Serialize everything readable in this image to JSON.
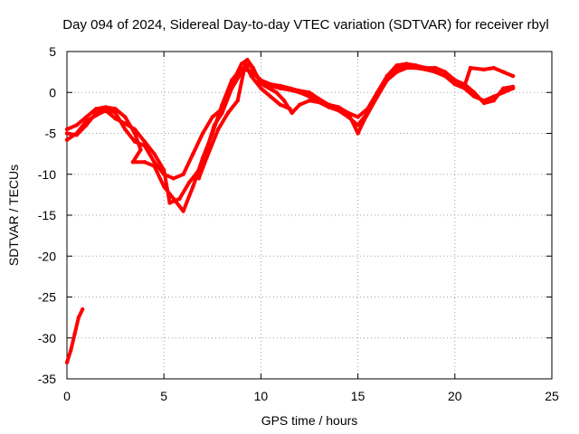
{
  "chart_data": {
    "type": "line",
    "title": "Day 094 of 2024, Sidereal Day-to-day VTEC variation (SDTVAR) for receiver rbyl",
    "xlabel": "GPS time / hours",
    "ylabel": "SDTVAR / TECUs",
    "xlim": [
      0,
      25
    ],
    "ylim": [
      -35,
      5
    ],
    "xticks": [
      0,
      5,
      10,
      15,
      20,
      25
    ],
    "yticks": [
      5,
      0,
      -5,
      -10,
      -15,
      -20,
      -25,
      -30,
      -35
    ],
    "grid": true,
    "series_color": "#ff0000",
    "series": [
      {
        "name": "track-1",
        "points": [
          [
            0.0,
            -5.0
          ],
          [
            0.5,
            -5.2
          ],
          [
            1.0,
            -4.0
          ],
          [
            1.5,
            -2.5
          ],
          [
            2.0,
            -2.0
          ],
          [
            2.5,
            -2.5
          ],
          [
            3.0,
            -4.5
          ],
          [
            3.5,
            -6.0
          ],
          [
            4.0,
            -6.5
          ],
          [
            4.5,
            -8.5
          ],
          [
            5.0,
            -10.0
          ],
          [
            5.5,
            -10.5
          ],
          [
            6.0,
            -10.0
          ],
          [
            6.5,
            -7.5
          ],
          [
            7.0,
            -5.0
          ],
          [
            7.5,
            -3.0
          ],
          [
            8.0,
            -2.0
          ],
          [
            8.5,
            1.0
          ],
          [
            9.0,
            3.5
          ],
          [
            9.3,
            4.0
          ],
          [
            9.6,
            3.0
          ],
          [
            10.0,
            1.0
          ],
          [
            10.5,
            0.8
          ],
          [
            11.0,
            0.5
          ],
          [
            11.5,
            0.3
          ],
          [
            12.0,
            0.0
          ],
          [
            12.5,
            -0.5
          ],
          [
            13.0,
            -1.0
          ],
          [
            13.5,
            -1.5
          ],
          [
            14.0,
            -2.0
          ],
          [
            14.5,
            -2.5
          ],
          [
            15.0,
            -3.0
          ],
          [
            15.5,
            -2.0
          ],
          [
            16.0,
            0.0
          ],
          [
            16.5,
            2.0
          ],
          [
            17.0,
            3.0
          ],
          [
            17.5,
            3.2
          ],
          [
            18.0,
            3.0
          ],
          [
            18.5,
            3.0
          ],
          [
            19.0,
            2.5
          ],
          [
            19.5,
            2.0
          ],
          [
            20.0,
            1.0
          ],
          [
            20.5,
            0.5
          ],
          [
            21.0,
            -0.5
          ],
          [
            21.5,
            -1.0
          ],
          [
            22.0,
            -0.5
          ],
          [
            22.5,
            0.0
          ],
          [
            23.0,
            0.5
          ]
        ]
      },
      {
        "name": "track-2",
        "points": [
          [
            0.0,
            -5.8
          ],
          [
            0.5,
            -5.0
          ],
          [
            1.0,
            -3.5
          ],
          [
            1.5,
            -2.8
          ],
          [
            2.0,
            -2.2
          ],
          [
            2.5,
            -3.2
          ],
          [
            3.0,
            -3.8
          ],
          [
            3.5,
            -4.5
          ],
          [
            4.0,
            -6.0
          ],
          [
            4.5,
            -7.5
          ],
          [
            5.0,
            -9.5
          ],
          [
            5.3,
            -13.5
          ],
          [
            5.8,
            -13.0
          ],
          [
            6.3,
            -11.0
          ],
          [
            6.8,
            -9.5
          ],
          [
            7.2,
            -7.0
          ],
          [
            7.6,
            -4.0
          ],
          [
            8.0,
            -2.5
          ],
          [
            8.5,
            0.5
          ],
          [
            9.0,
            2.5
          ],
          [
            9.4,
            3.5
          ],
          [
            9.8,
            2.0
          ],
          [
            10.2,
            0.8
          ],
          [
            10.8,
            0.0
          ],
          [
            11.2,
            -1.0
          ],
          [
            11.6,
            -2.5
          ],
          [
            12.0,
            -1.5
          ],
          [
            12.5,
            -1.0
          ],
          [
            13.0,
            -1.2
          ],
          [
            13.5,
            -1.8
          ],
          [
            14.0,
            -2.2
          ],
          [
            14.5,
            -3.0
          ],
          [
            15.0,
            -4.0
          ],
          [
            15.5,
            -2.5
          ],
          [
            16.0,
            -0.5
          ],
          [
            16.5,
            1.5
          ],
          [
            17.0,
            2.5
          ],
          [
            17.5,
            3.0
          ],
          [
            18.0,
            3.0
          ],
          [
            18.5,
            2.8
          ],
          [
            19.0,
            2.5
          ],
          [
            19.5,
            2.0
          ],
          [
            20.0,
            1.5
          ],
          [
            20.5,
            1.0
          ],
          [
            21.0,
            0.0
          ],
          [
            21.5,
            -1.3
          ],
          [
            22.0,
            -1.0
          ],
          [
            22.5,
            0.5
          ],
          [
            23.0,
            0.7
          ]
        ]
      },
      {
        "name": "track-3",
        "points": [
          [
            0.0,
            -4.5
          ],
          [
            0.5,
            -4.0
          ],
          [
            1.0,
            -3.0
          ],
          [
            1.5,
            -2.0
          ],
          [
            2.0,
            -1.8
          ],
          [
            2.5,
            -2.0
          ],
          [
            3.0,
            -3.0
          ],
          [
            3.5,
            -5.0
          ],
          [
            3.8,
            -7.0
          ],
          [
            3.4,
            -8.5
          ],
          [
            4.0,
            -8.5
          ],
          [
            4.5,
            -9.0
          ],
          [
            5.0,
            -11.5
          ],
          [
            5.5,
            -13.0
          ],
          [
            6.0,
            -14.5
          ],
          [
            6.5,
            -11.5
          ],
          [
            7.0,
            -8.0
          ],
          [
            7.5,
            -5.0
          ],
          [
            8.0,
            -1.5
          ],
          [
            8.5,
            1.5
          ],
          [
            9.0,
            3.0
          ],
          [
            9.5,
            2.5
          ],
          [
            10.0,
            1.5
          ],
          [
            10.5,
            1.0
          ],
          [
            11.0,
            0.8
          ],
          [
            11.5,
            0.5
          ],
          [
            12.0,
            0.2
          ],
          [
            12.5,
            0.0
          ],
          [
            13.0,
            -0.8
          ],
          [
            13.5,
            -1.5
          ],
          [
            14.0,
            -1.8
          ],
          [
            14.5,
            -2.5
          ],
          [
            15.0,
            -5.0
          ],
          [
            15.3,
            -3.5
          ],
          [
            16.0,
            -0.5
          ],
          [
            16.5,
            2.0
          ],
          [
            17.0,
            3.3
          ],
          [
            17.5,
            3.5
          ],
          [
            18.0,
            3.3
          ],
          [
            18.5,
            3.0
          ],
          [
            19.0,
            3.0
          ],
          [
            19.5,
            2.5
          ],
          [
            20.0,
            1.5
          ],
          [
            20.5,
            0.8
          ],
          [
            20.8,
            3.0
          ],
          [
            21.5,
            2.8
          ],
          [
            22.0,
            3.0
          ],
          [
            22.5,
            2.5
          ],
          [
            23.0,
            2.0
          ]
        ]
      },
      {
        "name": "track-4",
        "points": [
          [
            6.8,
            -10.5
          ],
          [
            7.2,
            -8.0
          ],
          [
            7.8,
            -4.5
          ],
          [
            8.3,
            -2.5
          ],
          [
            8.8,
            -1.0
          ],
          [
            9.2,
            3.5
          ],
          [
            9.5,
            2.0
          ],
          [
            10.0,
            0.5
          ],
          [
            10.5,
            -0.5
          ],
          [
            11.0,
            -1.5
          ],
          [
            11.5,
            -2.0
          ]
        ]
      },
      {
        "name": "track-5",
        "points": [
          [
            0.0,
            -33.0
          ],
          [
            0.2,
            -31.5
          ],
          [
            0.4,
            -29.5
          ],
          [
            0.6,
            -27.5
          ],
          [
            0.8,
            -26.5
          ]
        ]
      }
    ]
  }
}
